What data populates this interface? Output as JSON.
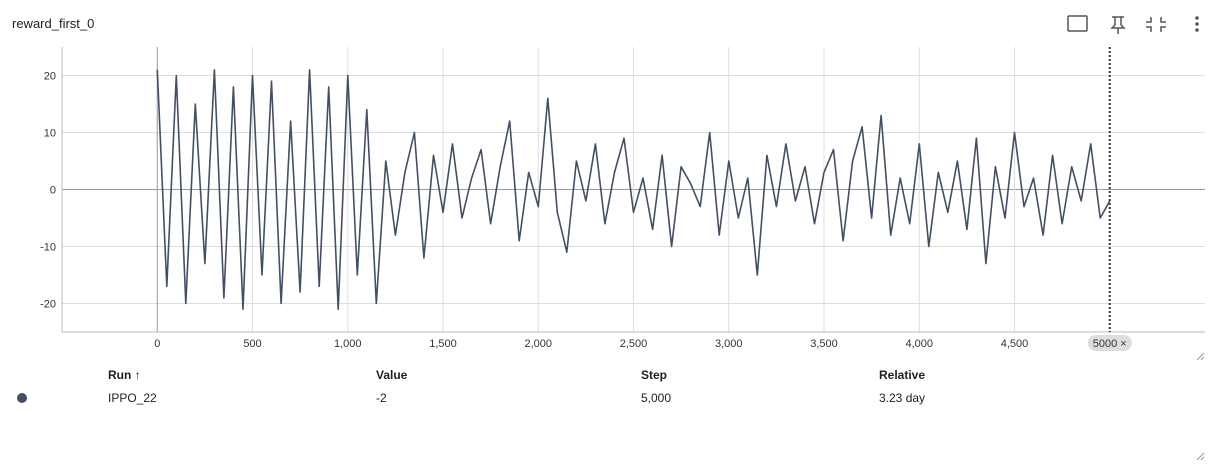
{
  "chart_data": {
    "type": "line",
    "title": "reward_first_0",
    "x": [
      0,
      50,
      100,
      150,
      200,
      250,
      300,
      350,
      400,
      450,
      500,
      550,
      600,
      650,
      700,
      750,
      800,
      850,
      900,
      950,
      1000,
      1050,
      1100,
      1150,
      1200,
      1250,
      1300,
      1350,
      1400,
      1450,
      1500,
      1550,
      1600,
      1650,
      1700,
      1750,
      1800,
      1850,
      1900,
      1950,
      2000,
      2050,
      2100,
      2150,
      2200,
      2250,
      2300,
      2350,
      2400,
      2450,
      2500,
      2550,
      2600,
      2650,
      2700,
      2750,
      2800,
      2850,
      2900,
      2950,
      3000,
      3050,
      3100,
      3150,
      3200,
      3250,
      3300,
      3350,
      3400,
      3450,
      3500,
      3550,
      3600,
      3650,
      3700,
      3750,
      3800,
      3850,
      3900,
      3950,
      4000,
      4050,
      4100,
      4150,
      4200,
      4250,
      4300,
      4350,
      4400,
      4450,
      4500,
      4550,
      4600,
      4650,
      4700,
      4750,
      4800,
      4850,
      4900,
      4950,
      5000
    ],
    "series": [
      {
        "name": "IPPO_22",
        "color": "#425066",
        "values": [
          21,
          -17,
          20,
          -20,
          15,
          -13,
          21,
          -19,
          18,
          -21,
          20,
          -15,
          19,
          -20,
          12,
          -18,
          21,
          -17,
          18,
          -21,
          20,
          -15,
          14,
          -20,
          5,
          -8,
          3,
          10,
          -12,
          6,
          -4,
          8,
          -5,
          2,
          7,
          -6,
          4,
          12,
          -9,
          3,
          -3,
          16,
          -4,
          -11,
          5,
          -2,
          8,
          -6,
          3,
          9,
          -4,
          2,
          -7,
          6,
          -10,
          4,
          1,
          -3,
          10,
          -8,
          5,
          -5,
          2,
          -15,
          6,
          -3,
          8,
          -2,
          4,
          -6,
          3,
          7,
          -9,
          5,
          11,
          -5,
          13,
          -8,
          2,
          -6,
          8,
          -10,
          3,
          -4,
          5,
          -7,
          9,
          -13,
          4,
          -5,
          10,
          -3,
          2,
          -8,
          6,
          -6,
          4,
          -2,
          8,
          -5,
          -2
        ]
      }
    ],
    "xlim": [
      -500,
      5500
    ],
    "ylim": [
      -25,
      25
    ],
    "xticks": [
      0,
      {
        "value": 500,
        "label": "500"
      },
      {
        "value": 1000,
        "label": "1,000"
      },
      {
        "value": 1500,
        "label": "1,500"
      },
      {
        "value": 2000,
        "label": "2,000"
      },
      {
        "value": 2500,
        "label": "2,500"
      },
      {
        "value": 3000,
        "label": "3,000"
      },
      {
        "value": 3500,
        "label": "3,500"
      },
      {
        "value": 4000,
        "label": "4,000"
      },
      {
        "value": 4500,
        "label": "4,500"
      }
    ],
    "yticks": [
      -20,
      -10,
      0,
      10,
      20
    ],
    "grid": true,
    "cursor": {
      "value": 5000,
      "label": "5000 ×"
    },
    "table": {
      "columns": [
        "Run ↑",
        "Value",
        "Step",
        "Relative"
      ],
      "rows": [
        [
          "IPPO_22",
          "-2",
          "5,000",
          "3.23 day"
        ]
      ]
    }
  }
}
